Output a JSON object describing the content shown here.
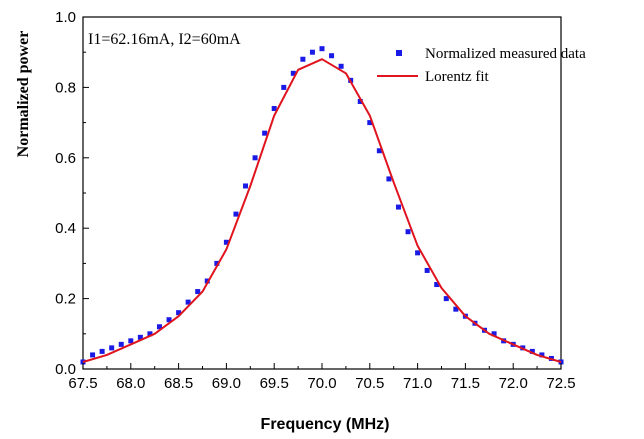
{
  "chart_data": {
    "type": "scatter",
    "xlabel": "Frequency (MHz)",
    "ylabel": "Normalized power",
    "annotation": "I1=62.16mA, I2=60mA",
    "xlim": [
      67.5,
      72.5
    ],
    "ylim": [
      0.0,
      1.0
    ],
    "x_ticks": [
      "67.5",
      "68.0",
      "68.5",
      "69.0",
      "69.5",
      "70.0",
      "70.5",
      "71.0",
      "71.5",
      "72.0",
      "72.5"
    ],
    "y_ticks": [
      "0.0",
      "0.2",
      "0.4",
      "0.6",
      "0.8",
      "1.0"
    ],
    "grid": false,
    "legend_position": "top-right",
    "series": [
      {
        "name": "Normalized measured data",
        "kind": "scatter",
        "color": "#1a1ae6",
        "marker": "square",
        "x": [
          67.5,
          67.6,
          67.7,
          67.8,
          67.9,
          68.0,
          68.1,
          68.2,
          68.3,
          68.4,
          68.5,
          68.6,
          68.7,
          68.8,
          68.9,
          69.0,
          69.1,
          69.2,
          69.3,
          69.4,
          69.5,
          69.6,
          69.7,
          69.8,
          69.9,
          70.0,
          70.1,
          70.2,
          70.3,
          70.4,
          70.5,
          70.6,
          70.7,
          70.8,
          70.9,
          71.0,
          71.1,
          71.2,
          71.3,
          71.4,
          71.5,
          71.6,
          71.7,
          71.8,
          71.9,
          72.0,
          72.1,
          72.2,
          72.3,
          72.4,
          72.5
        ],
        "y": [
          0.02,
          0.04,
          0.05,
          0.06,
          0.07,
          0.08,
          0.09,
          0.1,
          0.12,
          0.14,
          0.16,
          0.19,
          0.22,
          0.25,
          0.3,
          0.36,
          0.44,
          0.52,
          0.6,
          0.67,
          0.74,
          0.8,
          0.84,
          0.88,
          0.9,
          0.91,
          0.89,
          0.86,
          0.82,
          0.76,
          0.7,
          0.62,
          0.54,
          0.46,
          0.39,
          0.33,
          0.28,
          0.24,
          0.2,
          0.17,
          0.15,
          0.13,
          0.11,
          0.1,
          0.08,
          0.07,
          0.06,
          0.05,
          0.04,
          0.03,
          0.02
        ]
      },
      {
        "name": "Lorentz fit",
        "kind": "line",
        "color": "#e0141e",
        "x": [
          67.5,
          67.75,
          68.0,
          68.25,
          68.5,
          68.75,
          69.0,
          69.25,
          69.5,
          69.75,
          70.0,
          70.25,
          70.5,
          70.75,
          71.0,
          71.25,
          71.5,
          71.75,
          72.0,
          72.25,
          72.5
        ],
        "y": [
          0.02,
          0.04,
          0.07,
          0.1,
          0.15,
          0.22,
          0.34,
          0.52,
          0.72,
          0.85,
          0.88,
          0.84,
          0.72,
          0.53,
          0.35,
          0.23,
          0.15,
          0.1,
          0.07,
          0.04,
          0.02
        ]
      }
    ]
  }
}
